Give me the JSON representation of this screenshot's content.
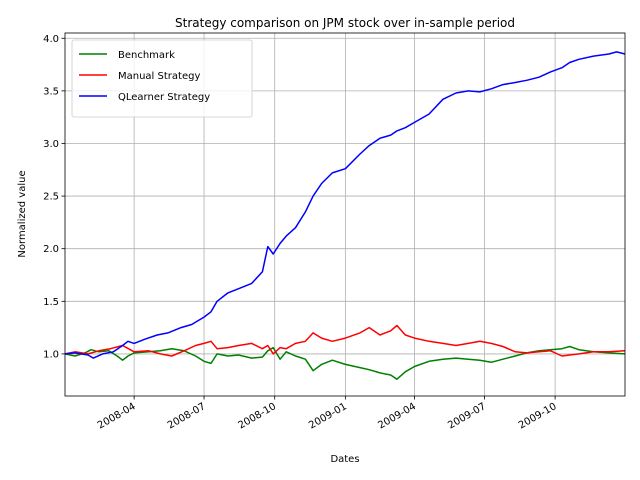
{
  "chart_data": {
    "type": "line",
    "title": "Strategy comparison on JPM stock over in-sample period",
    "xlabel": "Dates",
    "ylabel": "Normalized value",
    "xlim": [
      "2008-01-02",
      "2009-12-31"
    ],
    "ylim": [
      0.6,
      4.05
    ],
    "grid": true,
    "legend_position": "top-left",
    "x_ticks": [
      {
        "date": "2008-04-01",
        "label": "2008-04"
      },
      {
        "date": "2008-07-01",
        "label": "2008-07"
      },
      {
        "date": "2008-10-01",
        "label": "2008-10"
      },
      {
        "date": "2009-01-01",
        "label": "2009-01"
      },
      {
        "date": "2009-04-01",
        "label": "2009-04"
      },
      {
        "date": "2009-07-01",
        "label": "2009-07"
      },
      {
        "date": "2009-10-01",
        "label": "2009-10"
      }
    ],
    "y_ticks": [
      {
        "value": 1.0,
        "label": "1.0"
      },
      {
        "value": 1.5,
        "label": "1.5"
      },
      {
        "value": 2.0,
        "label": "2.0"
      },
      {
        "value": 2.5,
        "label": "2.5"
      },
      {
        "value": 3.0,
        "label": "3.0"
      },
      {
        "value": 3.5,
        "label": "3.5"
      },
      {
        "value": 4.0,
        "label": "4.0"
      }
    ],
    "series": [
      {
        "name": "Benchmark",
        "color": "#008000",
        "points": [
          [
            "2008-01-02",
            1.0
          ],
          [
            "2008-01-15",
            0.98
          ],
          [
            "2008-01-28",
            1.01
          ],
          [
            "2008-02-05",
            1.04
          ],
          [
            "2008-02-15",
            1.02
          ],
          [
            "2008-02-28",
            1.03
          ],
          [
            "2008-03-10",
            0.98
          ],
          [
            "2008-03-17",
            0.94
          ],
          [
            "2008-03-24",
            0.98
          ],
          [
            "2008-04-01",
            1.01
          ],
          [
            "2008-04-20",
            1.02
          ],
          [
            "2008-05-05",
            1.03
          ],
          [
            "2008-05-20",
            1.05
          ],
          [
            "2008-06-05",
            1.03
          ],
          [
            "2008-06-20",
            0.98
          ],
          [
            "2008-07-01",
            0.93
          ],
          [
            "2008-07-10",
            0.91
          ],
          [
            "2008-07-18",
            1.0
          ],
          [
            "2008-08-01",
            0.98
          ],
          [
            "2008-08-15",
            0.99
          ],
          [
            "2008-09-01",
            0.96
          ],
          [
            "2008-09-15",
            0.97
          ],
          [
            "2008-09-22",
            1.03
          ],
          [
            "2008-09-29",
            1.06
          ],
          [
            "2008-10-08",
            0.95
          ],
          [
            "2008-10-16",
            1.02
          ],
          [
            "2008-10-28",
            0.98
          ],
          [
            "2008-11-10",
            0.95
          ],
          [
            "2008-11-20",
            0.84
          ],
          [
            "2008-12-01",
            0.9
          ],
          [
            "2008-12-15",
            0.94
          ],
          [
            "2009-01-01",
            0.9
          ],
          [
            "2009-01-20",
            0.87
          ],
          [
            "2009-02-01",
            0.85
          ],
          [
            "2009-02-15",
            0.82
          ],
          [
            "2009-03-01",
            0.8
          ],
          [
            "2009-03-09",
            0.76
          ],
          [
            "2009-03-20",
            0.83
          ],
          [
            "2009-04-01",
            0.88
          ],
          [
            "2009-04-20",
            0.93
          ],
          [
            "2009-05-08",
            0.95
          ],
          [
            "2009-05-25",
            0.96
          ],
          [
            "2009-06-10",
            0.95
          ],
          [
            "2009-06-25",
            0.94
          ],
          [
            "2009-07-10",
            0.92
          ],
          [
            "2009-07-25",
            0.95
          ],
          [
            "2009-08-10",
            0.98
          ],
          [
            "2009-08-25",
            1.01
          ],
          [
            "2009-09-10",
            1.03
          ],
          [
            "2009-09-25",
            1.04
          ],
          [
            "2009-10-10",
            1.05
          ],
          [
            "2009-10-20",
            1.07
          ],
          [
            "2009-11-01",
            1.04
          ],
          [
            "2009-11-20",
            1.02
          ],
          [
            "2009-12-10",
            1.01
          ],
          [
            "2009-12-31",
            1.0
          ]
        ]
      },
      {
        "name": "Manual Strategy",
        "color": "#ff0000",
        "points": [
          [
            "2008-01-02",
            1.0
          ],
          [
            "2008-01-15",
            1.02
          ],
          [
            "2008-02-01",
            1.0
          ],
          [
            "2008-02-15",
            1.03
          ],
          [
            "2008-03-01",
            1.05
          ],
          [
            "2008-03-17",
            1.08
          ],
          [
            "2008-04-01",
            1.02
          ],
          [
            "2008-04-20",
            1.03
          ],
          [
            "2008-05-05",
            1.0
          ],
          [
            "2008-05-20",
            0.98
          ],
          [
            "2008-06-05",
            1.03
          ],
          [
            "2008-06-20",
            1.08
          ],
          [
            "2008-07-01",
            1.1
          ],
          [
            "2008-07-10",
            1.12
          ],
          [
            "2008-07-18",
            1.05
          ],
          [
            "2008-08-01",
            1.06
          ],
          [
            "2008-08-15",
            1.08
          ],
          [
            "2008-09-01",
            1.1
          ],
          [
            "2008-09-15",
            1.05
          ],
          [
            "2008-09-22",
            1.08
          ],
          [
            "2008-09-29",
            1.0
          ],
          [
            "2008-10-08",
            1.06
          ],
          [
            "2008-10-16",
            1.05
          ],
          [
            "2008-10-28",
            1.1
          ],
          [
            "2008-11-10",
            1.12
          ],
          [
            "2008-11-20",
            1.2
          ],
          [
            "2008-12-01",
            1.15
          ],
          [
            "2008-12-15",
            1.12
          ],
          [
            "2009-01-01",
            1.15
          ],
          [
            "2009-01-20",
            1.2
          ],
          [
            "2009-02-01",
            1.25
          ],
          [
            "2009-02-15",
            1.18
          ],
          [
            "2009-03-01",
            1.22
          ],
          [
            "2009-03-09",
            1.27
          ],
          [
            "2009-03-20",
            1.18
          ],
          [
            "2009-04-01",
            1.15
          ],
          [
            "2009-04-20",
            1.12
          ],
          [
            "2009-05-08",
            1.1
          ],
          [
            "2009-05-25",
            1.08
          ],
          [
            "2009-06-10",
            1.1
          ],
          [
            "2009-06-25",
            1.12
          ],
          [
            "2009-07-10",
            1.1
          ],
          [
            "2009-07-25",
            1.07
          ],
          [
            "2009-08-10",
            1.02
          ],
          [
            "2009-08-25",
            1.01
          ],
          [
            "2009-09-10",
            1.02
          ],
          [
            "2009-09-25",
            1.03
          ],
          [
            "2009-10-10",
            0.98
          ],
          [
            "2009-10-20",
            0.99
          ],
          [
            "2009-11-01",
            1.0
          ],
          [
            "2009-11-20",
            1.02
          ],
          [
            "2009-12-10",
            1.02
          ],
          [
            "2009-12-31",
            1.03
          ]
        ]
      },
      {
        "name": "QLearner Strategy",
        "color": "#0000ff",
        "points": [
          [
            "2008-01-02",
            1.0
          ],
          [
            "2008-01-15",
            1.01
          ],
          [
            "2008-02-01",
            0.99
          ],
          [
            "2008-02-08",
            0.96
          ],
          [
            "2008-02-20",
            1.0
          ],
          [
            "2008-03-05",
            1.02
          ],
          [
            "2008-03-17",
            1.08
          ],
          [
            "2008-03-24",
            1.12
          ],
          [
            "2008-04-01",
            1.1
          ],
          [
            "2008-04-15",
            1.14
          ],
          [
            "2008-05-01",
            1.18
          ],
          [
            "2008-05-15",
            1.2
          ],
          [
            "2008-06-01",
            1.25
          ],
          [
            "2008-06-15",
            1.28
          ],
          [
            "2008-07-01",
            1.35
          ],
          [
            "2008-07-10",
            1.4
          ],
          [
            "2008-07-18",
            1.5
          ],
          [
            "2008-08-01",
            1.58
          ],
          [
            "2008-08-15",
            1.62
          ],
          [
            "2008-09-01",
            1.67
          ],
          [
            "2008-09-15",
            1.78
          ],
          [
            "2008-09-22",
            2.02
          ],
          [
            "2008-09-29",
            1.95
          ],
          [
            "2008-10-08",
            2.05
          ],
          [
            "2008-10-16",
            2.12
          ],
          [
            "2008-10-28",
            2.2
          ],
          [
            "2008-11-10",
            2.35
          ],
          [
            "2008-11-20",
            2.5
          ],
          [
            "2008-12-01",
            2.62
          ],
          [
            "2008-12-15",
            2.72
          ],
          [
            "2009-01-01",
            2.76
          ],
          [
            "2009-01-20",
            2.9
          ],
          [
            "2009-02-01",
            2.98
          ],
          [
            "2009-02-15",
            3.05
          ],
          [
            "2009-03-01",
            3.08
          ],
          [
            "2009-03-09",
            3.12
          ],
          [
            "2009-03-20",
            3.15
          ],
          [
            "2009-04-01",
            3.2
          ],
          [
            "2009-04-20",
            3.28
          ],
          [
            "2009-05-08",
            3.42
          ],
          [
            "2009-05-25",
            3.48
          ],
          [
            "2009-06-10",
            3.5
          ],
          [
            "2009-06-25",
            3.49
          ],
          [
            "2009-07-10",
            3.52
          ],
          [
            "2009-07-25",
            3.56
          ],
          [
            "2009-08-10",
            3.58
          ],
          [
            "2009-08-25",
            3.6
          ],
          [
            "2009-09-10",
            3.63
          ],
          [
            "2009-09-25",
            3.68
          ],
          [
            "2009-10-10",
            3.72
          ],
          [
            "2009-10-20",
            3.77
          ],
          [
            "2009-11-01",
            3.8
          ],
          [
            "2009-11-20",
            3.83
          ],
          [
            "2009-12-10",
            3.85
          ],
          [
            "2009-12-20",
            3.87
          ],
          [
            "2009-12-31",
            3.85
          ]
        ]
      }
    ]
  }
}
